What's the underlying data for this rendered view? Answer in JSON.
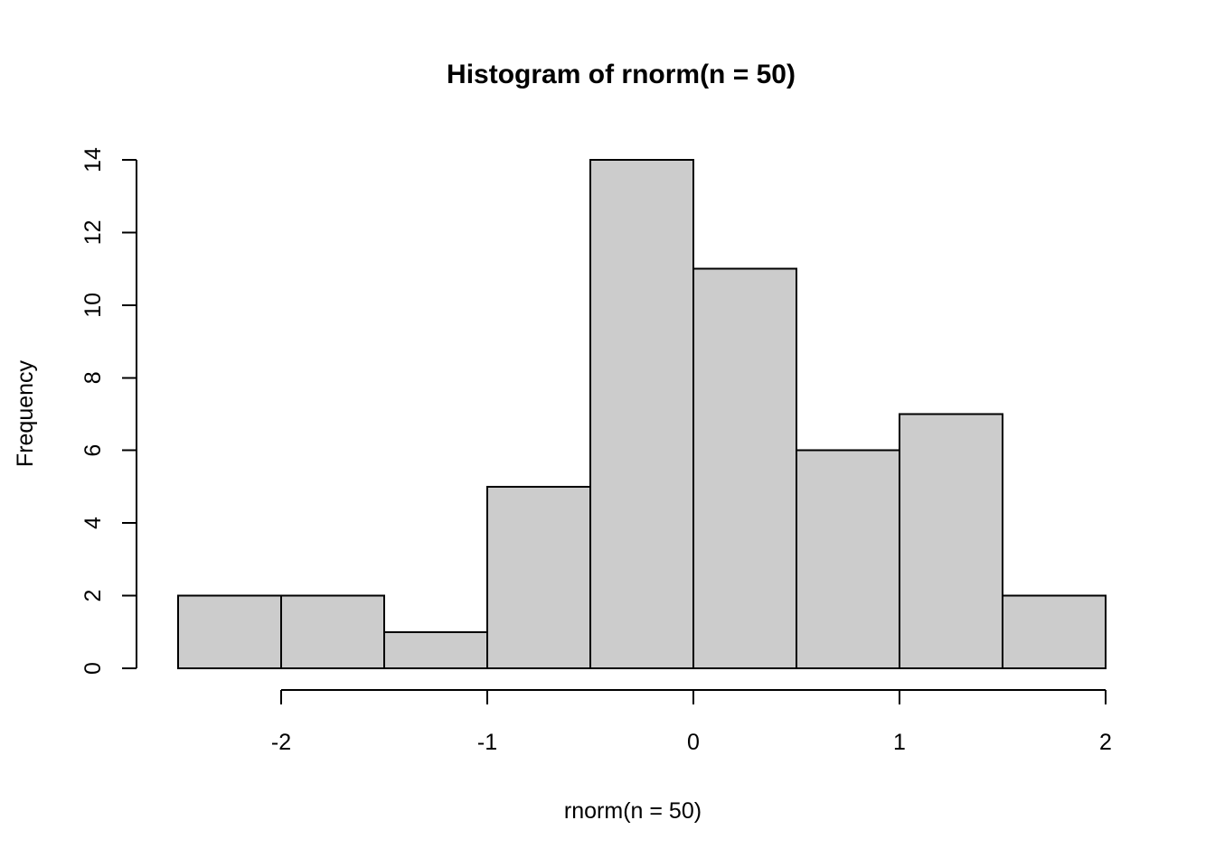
{
  "chart_data": {
    "type": "bar",
    "subtype": "histogram",
    "title": "Histogram of rnorm(n = 50)",
    "xlabel": "rnorm(n = 50)",
    "ylabel": "Frequency",
    "bin_breaks": [
      -2.5,
      -2.0,
      -1.5,
      -1.0,
      -0.5,
      0.0,
      0.5,
      1.0,
      1.5,
      2.0
    ],
    "counts": [
      2,
      2,
      1,
      5,
      14,
      11,
      6,
      7,
      2
    ],
    "x_ticks": [
      "-2",
      "-1",
      "0",
      "1",
      "2"
    ],
    "x_tick_values": [
      -2,
      -1,
      0,
      1,
      2
    ],
    "y_ticks": [
      "0",
      "2",
      "4",
      "6",
      "8",
      "10",
      "12",
      "14"
    ],
    "y_tick_values": [
      0,
      2,
      4,
      6,
      8,
      10,
      12,
      14
    ],
    "xlim": [
      -2.5,
      2.0
    ],
    "ylim": [
      0,
      14
    ],
    "grid": false,
    "legend_position": "none",
    "colors": {
      "bar_fill": "#cccccc",
      "bar_stroke": "#000000",
      "axis": "#000000",
      "text": "#000000",
      "background": "#ffffff"
    }
  }
}
